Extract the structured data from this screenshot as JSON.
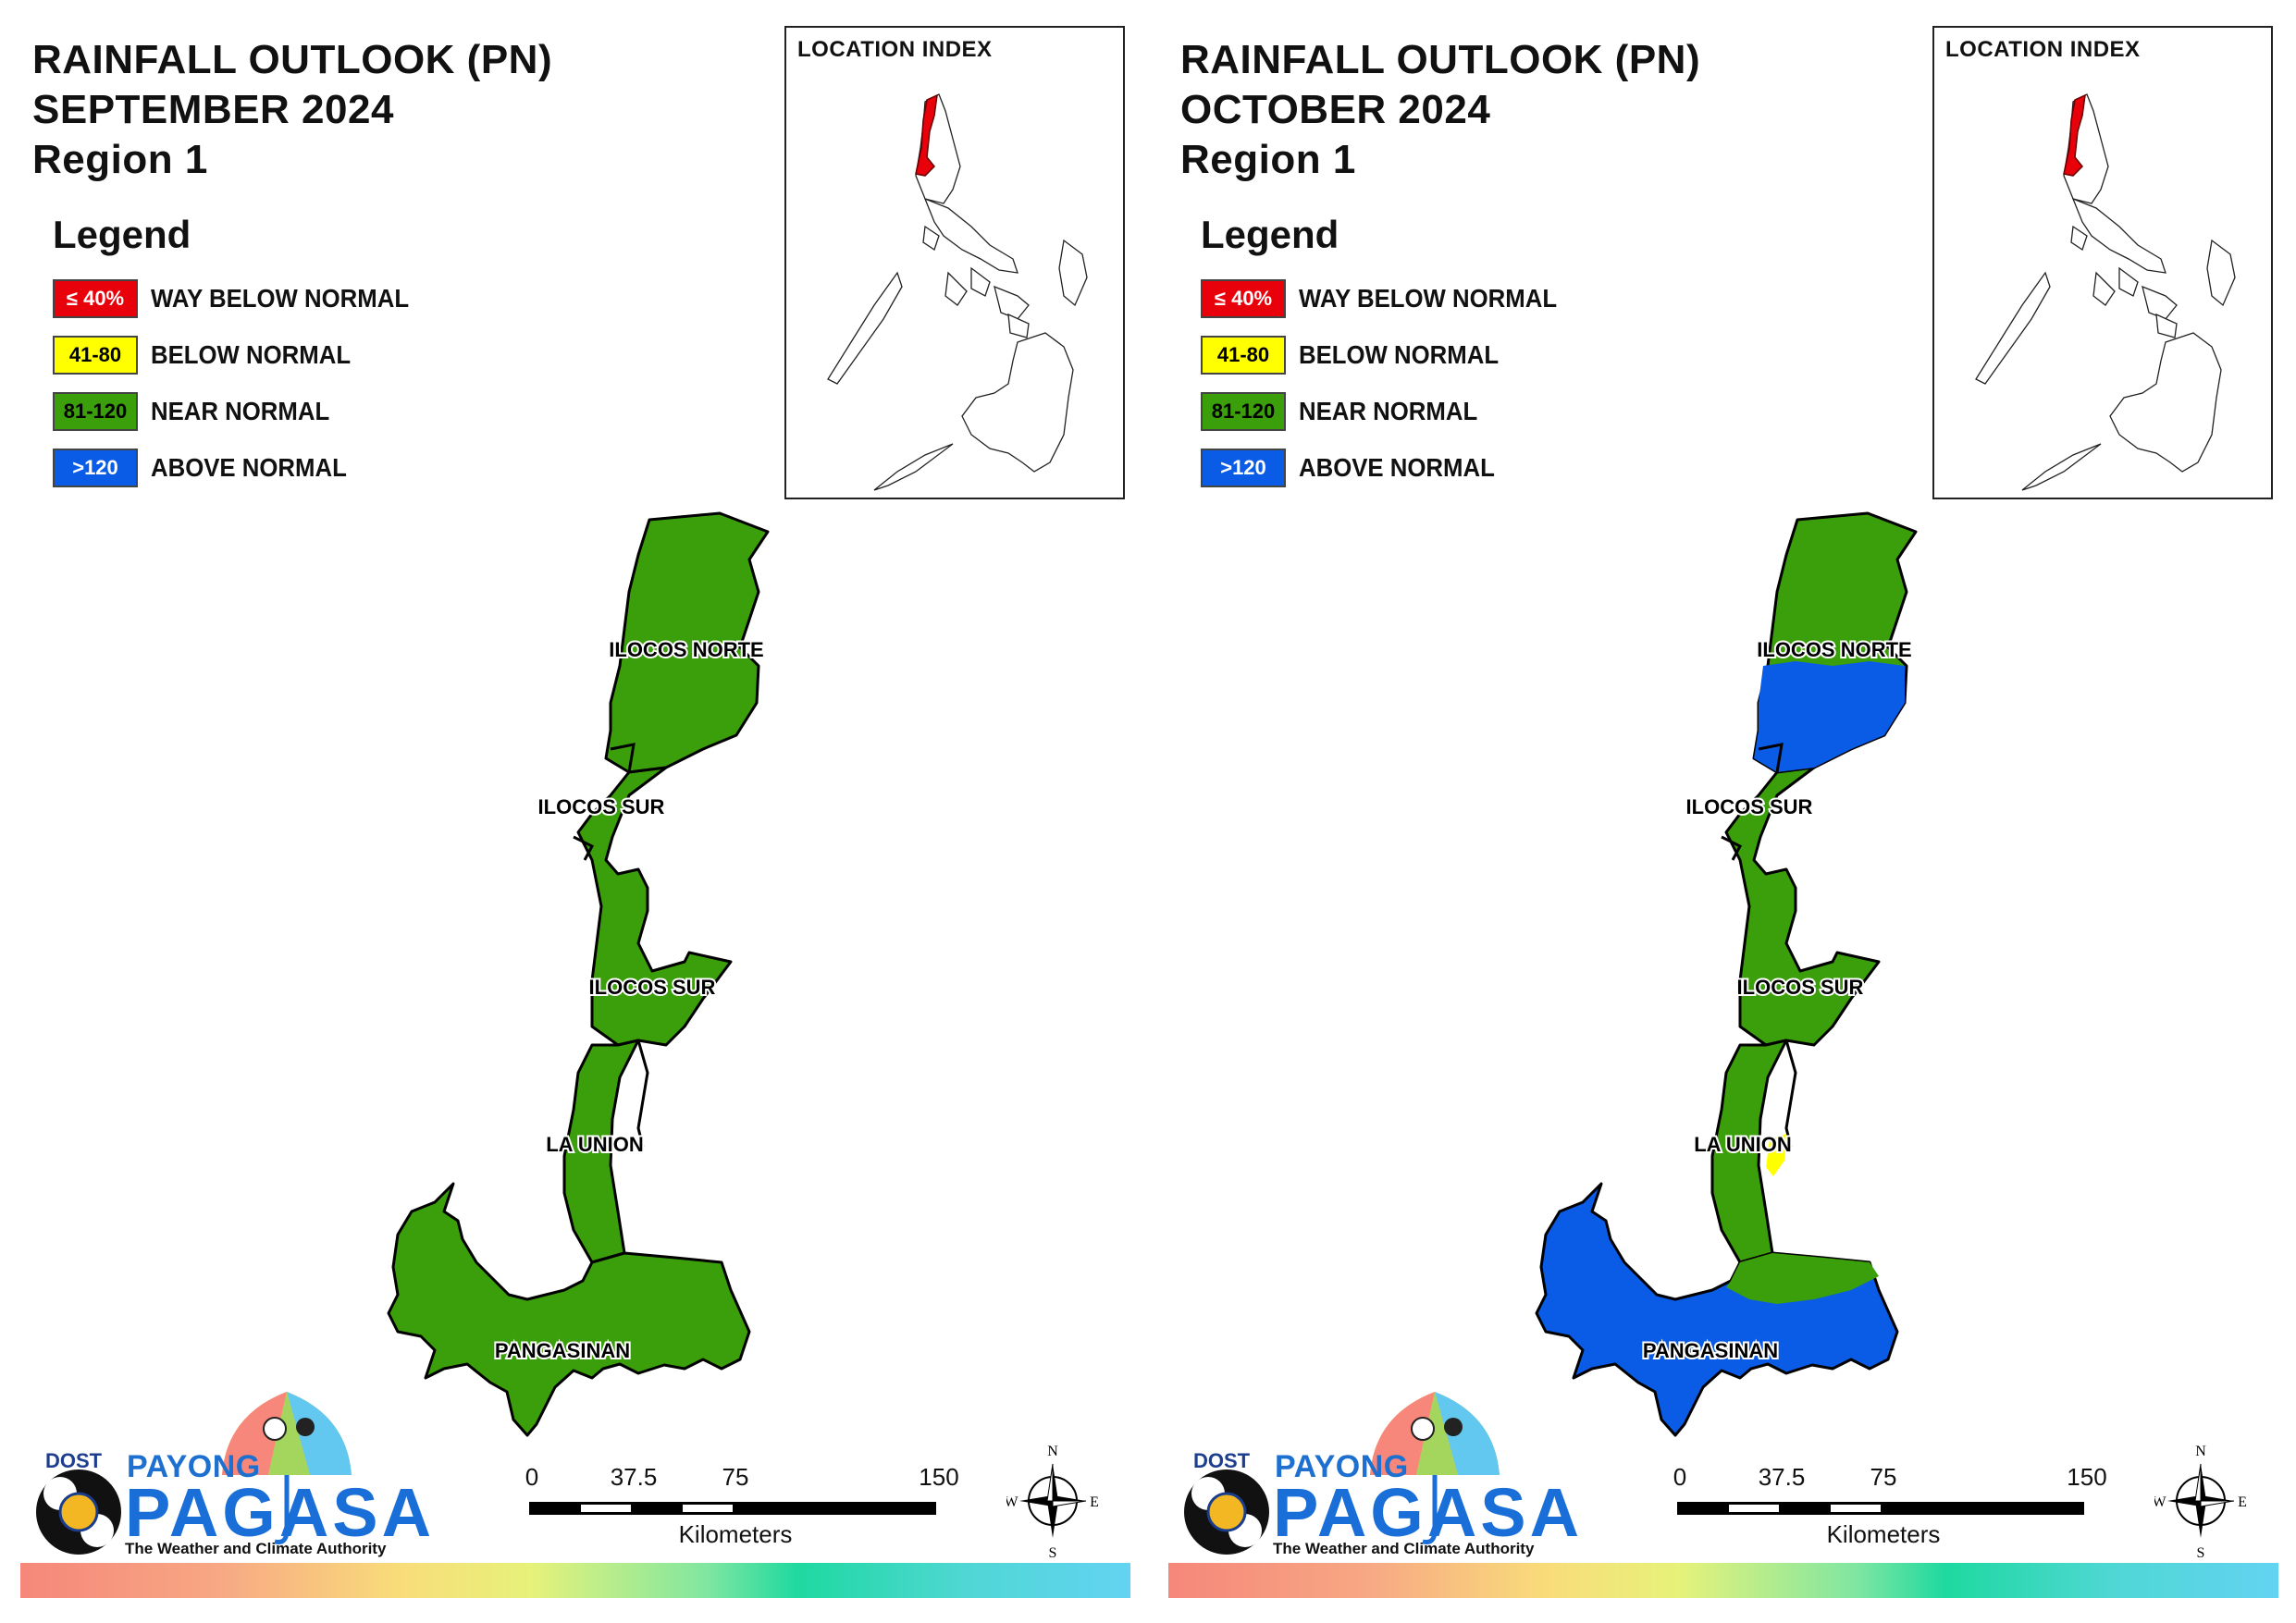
{
  "panels": [
    {
      "title_line1": "RAINFALL OUTLOOK (PN)",
      "title_line2": "SEPTEMBER 2024",
      "title_line3": "Region 1",
      "province_classes": {
        "ilocos_norte": "near_normal",
        "ilocos_norte_inland": "near_normal",
        "ilocos_sur": "near_normal",
        "la_union": "near_normal",
        "pangasinan": "near_normal"
      }
    },
    {
      "title_line1": "RAINFALL OUTLOOK (PN)",
      "title_line2": "OCTOBER 2024",
      "title_line3": "Region 1",
      "province_classes": {
        "ilocos_norte": "near_normal",
        "ilocos_norte_inland": "above_normal",
        "ilocos_sur": "near_normal",
        "la_union": "near_normal",
        "la_union_patch": "below_normal",
        "pangasinan": "above_normal",
        "pangasinan_east": "near_normal"
      }
    }
  ],
  "legend": {
    "title": "Legend",
    "items": [
      {
        "range": "≤ 40%",
        "label": "WAY BELOW NORMAL",
        "color": "#e8000b",
        "text_color": "#ffffff"
      },
      {
        "range": "41-80",
        "label": "BELOW NORMAL",
        "color": "#ffff00",
        "text_color": "#000000"
      },
      {
        "range": "81-120",
        "label": "NEAR NORMAL",
        "color": "#3a9f0a",
        "text_color": "#000000"
      },
      {
        "range": ">120",
        "label": "ABOVE NORMAL",
        "color": "#0a5ce6",
        "text_color": "#ffffff"
      }
    ]
  },
  "class_colors": {
    "near_normal": "#3a9f0a",
    "above_normal": "#0a5ce6",
    "below_normal": "#ffff00",
    "way_below_normal": "#e8000b"
  },
  "location_index": {
    "title": "LOCATION INDEX",
    "highlight_color": "#e8000b"
  },
  "province_labels": {
    "ilocos_norte": "ILOCOS NORTE",
    "ilocos_sur_1": "ILOCOS SUR",
    "ilocos_sur_2": "ILOCOS SUR",
    "la_union": "LA UNION",
    "pangasinan": "PANGASINAN"
  },
  "logo": {
    "dost": "DOST",
    "payong": "PAYONG",
    "pagasa": "PAGASA",
    "tagline": "The Weather and Climate Authority"
  },
  "scale_bar": {
    "ticks": [
      "0",
      "37.5",
      "75",
      "150"
    ],
    "units": "Kilometers"
  },
  "compass": {
    "n": "N",
    "s": "S",
    "e": "E",
    "w": "W"
  }
}
